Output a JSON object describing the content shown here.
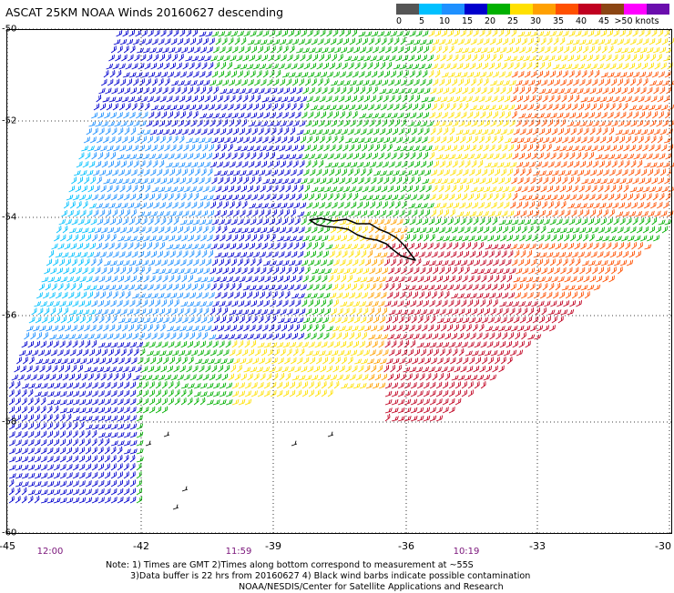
{
  "title": "ASCAT 25KM NOAA Winds 20160627 descending",
  "legend": {
    "colors": [
      "#555555",
      "#00c0ff",
      "#1e90ff",
      "#0000cd",
      "#00b000",
      "#ffe000",
      "#ffa000",
      "#ff5000",
      "#c00020",
      "#8b4513",
      "#ff00ff",
      "#6a0dad"
    ],
    "labels": [
      "0",
      "5",
      "10",
      "15",
      "20",
      "25",
      "30",
      "35",
      "40",
      "45",
      ">50 knots"
    ]
  },
  "axes": {
    "lon_labels": [
      "-45",
      "-42",
      "-39",
      "-36",
      "-33",
      "-30"
    ],
    "lat_labels": [
      "-50",
      "-52",
      "-54",
      "-56",
      "-58",
      "-60"
    ]
  },
  "times": [
    "12:00",
    "11:59",
    "10:19"
  ],
  "notes": {
    "line1": "Note: 1) Times are GMT 2)Times along bottom correspond to measurement at ~55S",
    "line2": "3)Data buffer is 22 hrs from 20160627 4) Black wind barbs indicate possible contamination",
    "line3": "NOAA/NESDIS/Center for Satellite Applications and Research"
  }
}
